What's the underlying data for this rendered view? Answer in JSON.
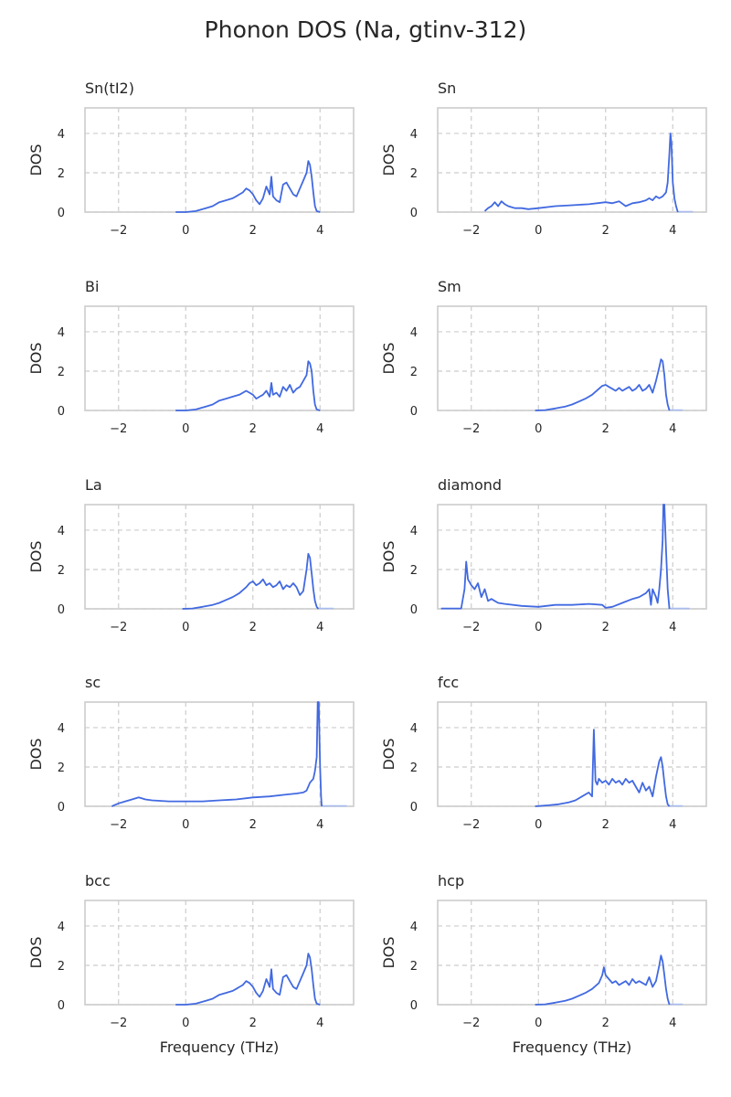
{
  "figure": {
    "title": "Phonon DOS (Na, gtinv-312)"
  },
  "style": {
    "line_color": "#4169e1",
    "tail_color": "#a9bcf0",
    "grid_color": "#cccccc",
    "spine_color": "#cccccc",
    "text_color": "#262626"
  },
  "chart_data": [
    {
      "type": "line",
      "title": "Sn(tI2)",
      "xlabel": "",
      "ylabel": "DOS",
      "xlim": [
        -3,
        5
      ],
      "ylim": [
        0,
        5.3
      ],
      "xticks": [
        "−2",
        "0",
        "2",
        "4"
      ],
      "xtick_values": [
        -2,
        0,
        2,
        4
      ],
      "yticks": [
        "0",
        "2",
        "4"
      ],
      "ytick_values": [
        0,
        2,
        4
      ],
      "grid": true,
      "series": [
        {
          "x": [
            -0.3,
            0,
            0.3,
            0.6,
            0.8,
            1.0,
            1.2,
            1.4,
            1.5,
            1.6,
            1.7,
            1.8,
            1.9,
            2.0,
            2.1,
            2.2,
            2.3,
            2.4,
            2.5,
            2.55,
            2.6,
            2.7,
            2.8,
            2.9,
            3.0,
            3.1,
            3.2,
            3.3,
            3.4,
            3.5,
            3.6,
            3.65,
            3.7,
            3.75,
            3.8,
            3.85,
            3.9,
            4.0
          ],
          "y": [
            0,
            0,
            0.05,
            0.2,
            0.3,
            0.5,
            0.6,
            0.7,
            0.8,
            0.9,
            1.0,
            1.2,
            1.1,
            0.9,
            0.6,
            0.4,
            0.7,
            1.3,
            0.9,
            1.8,
            0.8,
            0.6,
            0.5,
            1.4,
            1.5,
            1.2,
            0.9,
            0.8,
            1.2,
            1.6,
            2.0,
            2.6,
            2.4,
            1.8,
            1.0,
            0.3,
            0.05,
            0
          ]
        }
      ]
    },
    {
      "type": "line",
      "title": "Sn",
      "xlabel": "",
      "ylabel": "DOS",
      "xlim": [
        -3,
        5
      ],
      "ylim": [
        0,
        5.3
      ],
      "xticks": [
        "−2",
        "0",
        "2",
        "4"
      ],
      "xtick_values": [
        -2,
        0,
        2,
        4
      ],
      "yticks": [
        "0",
        "2",
        "4"
      ],
      "ytick_values": [
        0,
        2,
        4
      ],
      "grid": true,
      "tail": [
        [
          4.15,
          0.02
        ],
        [
          4.6,
          0.02
        ]
      ],
      "series": [
        {
          "x": [
            -1.6,
            -1.5,
            -1.4,
            -1.3,
            -1.2,
            -1.1,
            -1.0,
            -0.9,
            -0.8,
            -0.7,
            -0.6,
            -0.5,
            -0.3,
            0,
            0.5,
            1.0,
            1.5,
            2.0,
            2.2,
            2.4,
            2.6,
            2.8,
            3.0,
            3.2,
            3.3,
            3.4,
            3.5,
            3.6,
            3.7,
            3.8,
            3.85,
            3.9,
            3.93,
            3.96,
            4.0,
            4.05,
            4.1,
            4.15
          ],
          "y": [
            0.05,
            0.2,
            0.3,
            0.5,
            0.3,
            0.55,
            0.4,
            0.3,
            0.25,
            0.2,
            0.2,
            0.2,
            0.15,
            0.2,
            0.3,
            0.35,
            0.4,
            0.5,
            0.45,
            0.55,
            0.3,
            0.45,
            0.5,
            0.6,
            0.7,
            0.6,
            0.8,
            0.7,
            0.8,
            1.0,
            1.5,
            3.0,
            4.0,
            3.5,
            1.5,
            0.7,
            0.3,
            0
          ]
        }
      ]
    },
    {
      "type": "line",
      "title": "Bi",
      "xlabel": "",
      "ylabel": "DOS",
      "xlim": [
        -3,
        5
      ],
      "ylim": [
        0,
        5.3
      ],
      "xticks": [
        "−2",
        "0",
        "2",
        "4"
      ],
      "xtick_values": [
        -2,
        0,
        2,
        4
      ],
      "yticks": [
        "0",
        "2",
        "4"
      ],
      "ytick_values": [
        0,
        2,
        4
      ],
      "grid": true,
      "series": [
        {
          "x": [
            -0.3,
            0,
            0.3,
            0.6,
            0.8,
            1.0,
            1.2,
            1.4,
            1.6,
            1.8,
            1.9,
            2.0,
            2.1,
            2.2,
            2.3,
            2.4,
            2.5,
            2.55,
            2.6,
            2.7,
            2.8,
            2.9,
            3.0,
            3.1,
            3.2,
            3.3,
            3.4,
            3.5,
            3.6,
            3.65,
            3.7,
            3.75,
            3.8,
            3.85,
            3.9,
            4.0
          ],
          "y": [
            0,
            0,
            0.05,
            0.2,
            0.3,
            0.5,
            0.6,
            0.7,
            0.8,
            1.0,
            0.9,
            0.8,
            0.6,
            0.7,
            0.8,
            1.0,
            0.7,
            1.4,
            0.8,
            0.9,
            0.7,
            1.2,
            1.0,
            1.3,
            0.9,
            1.1,
            1.2,
            1.5,
            1.8,
            2.5,
            2.4,
            2.0,
            1.0,
            0.3,
            0.05,
            0
          ]
        }
      ]
    },
    {
      "type": "line",
      "title": "Sm",
      "xlabel": "",
      "ylabel": "DOS",
      "xlim": [
        -3,
        5
      ],
      "ylim": [
        0,
        5.3
      ],
      "xticks": [
        "−2",
        "0",
        "2",
        "4"
      ],
      "xtick_values": [
        -2,
        0,
        2,
        4
      ],
      "yticks": [
        "0",
        "2",
        "4"
      ],
      "ytick_values": [
        0,
        2,
        4
      ],
      "grid": true,
      "tail": [
        [
          3.9,
          0.02
        ],
        [
          4.3,
          0.02
        ]
      ],
      "series": [
        {
          "x": [
            -0.1,
            0.2,
            0.5,
            0.8,
            1.0,
            1.2,
            1.4,
            1.6,
            1.8,
            1.9,
            2.0,
            2.1,
            2.2,
            2.3,
            2.4,
            2.5,
            2.6,
            2.7,
            2.8,
            2.9,
            3.0,
            3.1,
            3.2,
            3.3,
            3.4,
            3.5,
            3.6,
            3.65,
            3.7,
            3.75,
            3.8,
            3.85,
            3.9
          ],
          "y": [
            0,
            0.02,
            0.1,
            0.2,
            0.3,
            0.45,
            0.6,
            0.8,
            1.1,
            1.25,
            1.3,
            1.2,
            1.1,
            1.0,
            1.15,
            1.0,
            1.1,
            1.2,
            1.0,
            1.1,
            1.3,
            1.0,
            1.1,
            1.3,
            0.9,
            1.5,
            2.2,
            2.6,
            2.5,
            1.8,
            0.8,
            0.3,
            0
          ]
        }
      ]
    },
    {
      "type": "line",
      "title": "La",
      "xlabel": "",
      "ylabel": "DOS",
      "xlim": [
        -3,
        5
      ],
      "ylim": [
        0,
        5.3
      ],
      "xticks": [
        "−2",
        "0",
        "2",
        "4"
      ],
      "xtick_values": [
        -2,
        0,
        2,
        4
      ],
      "yticks": [
        "0",
        "2",
        "4"
      ],
      "ytick_values": [
        0,
        2,
        4
      ],
      "grid": true,
      "tail": [
        [
          3.95,
          0.02
        ],
        [
          4.4,
          0.02
        ]
      ],
      "series": [
        {
          "x": [
            -0.1,
            0.2,
            0.5,
            0.8,
            1.0,
            1.2,
            1.4,
            1.6,
            1.8,
            1.9,
            2.0,
            2.1,
            2.2,
            2.3,
            2.4,
            2.5,
            2.6,
            2.7,
            2.8,
            2.9,
            3.0,
            3.1,
            3.2,
            3.3,
            3.4,
            3.5,
            3.6,
            3.65,
            3.7,
            3.75,
            3.8,
            3.85,
            3.9,
            3.95
          ],
          "y": [
            0,
            0.02,
            0.1,
            0.2,
            0.3,
            0.45,
            0.6,
            0.8,
            1.1,
            1.3,
            1.4,
            1.2,
            1.3,
            1.5,
            1.2,
            1.3,
            1.1,
            1.2,
            1.4,
            1.0,
            1.2,
            1.1,
            1.3,
            1.1,
            0.7,
            0.9,
            2.0,
            2.8,
            2.6,
            1.8,
            1.0,
            0.4,
            0.1,
            0
          ]
        }
      ]
    },
    {
      "type": "line",
      "title": "diamond",
      "xlabel": "",
      "ylabel": "DOS",
      "xlim": [
        -3,
        5
      ],
      "ylim": [
        0,
        5.3
      ],
      "xticks": [
        "−2",
        "0",
        "2",
        "4"
      ],
      "xtick_values": [
        -2,
        0,
        2,
        4
      ],
      "yticks": [
        "0",
        "2",
        "4"
      ],
      "ytick_values": [
        0,
        2,
        4
      ],
      "grid": true,
      "tail": [
        [
          3.9,
          0.02
        ],
        [
          4.5,
          0.02
        ]
      ],
      "series": [
        {
          "x": [
            -2.9,
            -2.3,
            -2.2,
            -2.15,
            -2.1,
            -2.0,
            -1.9,
            -1.8,
            -1.7,
            -1.6,
            -1.5,
            -1.4,
            -1.2,
            -1.0,
            -0.5,
            0,
            0.5,
            1.0,
            1.5,
            1.9,
            2.0,
            2.2,
            2.5,
            2.8,
            3.0,
            3.2,
            3.3,
            3.35,
            3.4,
            3.5,
            3.55,
            3.6,
            3.65,
            3.7,
            3.72,
            3.75,
            3.8,
            3.85,
            3.9
          ],
          "y": [
            0.02,
            0.02,
            1.0,
            2.4,
            1.5,
            1.2,
            1.0,
            1.3,
            0.6,
            1.0,
            0.4,
            0.5,
            0.3,
            0.25,
            0.15,
            0.1,
            0.2,
            0.2,
            0.25,
            0.2,
            0.05,
            0.1,
            0.3,
            0.5,
            0.6,
            0.8,
            1.0,
            0.2,
            1.0,
            0.6,
            0.3,
            1.0,
            2.0,
            3.5,
            5.3,
            5.3,
            3.0,
            1.0,
            0
          ]
        }
      ]
    },
    {
      "type": "line",
      "title": "sc",
      "xlabel": "",
      "ylabel": "DOS",
      "xlim": [
        -3,
        5
      ],
      "ylim": [
        0,
        5.3
      ],
      "xticks": [
        "−2",
        "0",
        "2",
        "4"
      ],
      "xtick_values": [
        -2,
        0,
        2,
        4
      ],
      "yticks": [
        "0",
        "2",
        "4"
      ],
      "ytick_values": [
        0,
        2,
        4
      ],
      "grid": true,
      "tail": [
        [
          4.05,
          0.02
        ],
        [
          4.8,
          0.02
        ]
      ],
      "series": [
        {
          "x": [
            -2.2,
            -2.0,
            -1.8,
            -1.6,
            -1.4,
            -1.2,
            -1.0,
            -0.5,
            0,
            0.5,
            1.0,
            1.5,
            2.0,
            2.5,
            3.0,
            3.3,
            3.5,
            3.6,
            3.7,
            3.8,
            3.85,
            3.9,
            3.93,
            3.96,
            4.0,
            4.03,
            4.05
          ],
          "y": [
            0,
            0.15,
            0.25,
            0.35,
            0.45,
            0.35,
            0.3,
            0.25,
            0.25,
            0.25,
            0.3,
            0.35,
            0.45,
            0.5,
            0.6,
            0.65,
            0.7,
            0.8,
            1.2,
            1.4,
            1.8,
            2.5,
            5.3,
            5.3,
            2.0,
            0.5,
            0
          ]
        }
      ]
    },
    {
      "type": "line",
      "title": "fcc",
      "xlabel": "",
      "ylabel": "DOS",
      "xlim": [
        -3,
        5
      ],
      "ylim": [
        0,
        5.3
      ],
      "xticks": [
        "−2",
        "0",
        "2",
        "4"
      ],
      "xtick_values": [
        -2,
        0,
        2,
        4
      ],
      "yticks": [
        "0",
        "2",
        "4"
      ],
      "ytick_values": [
        0,
        2,
        4
      ],
      "grid": true,
      "tail": [
        [
          3.9,
          0.02
        ],
        [
          4.3,
          0.02
        ]
      ],
      "series": [
        {
          "x": [
            -0.1,
            0.3,
            0.6,
            0.9,
            1.1,
            1.3,
            1.5,
            1.6,
            1.65,
            1.7,
            1.72,
            1.75,
            1.8,
            1.9,
            2.0,
            2.1,
            2.2,
            2.3,
            2.4,
            2.5,
            2.6,
            2.7,
            2.8,
            2.9,
            3.0,
            3.1,
            3.2,
            3.3,
            3.4,
            3.5,
            3.6,
            3.65,
            3.7,
            3.75,
            3.8,
            3.85,
            3.9
          ],
          "y": [
            0,
            0.05,
            0.1,
            0.2,
            0.3,
            0.5,
            0.7,
            0.5,
            3.9,
            1.3,
            1.2,
            1.1,
            1.4,
            1.2,
            1.3,
            1.1,
            1.4,
            1.2,
            1.3,
            1.1,
            1.4,
            1.2,
            1.3,
            1.0,
            0.7,
            1.2,
            0.8,
            1.0,
            0.5,
            1.5,
            2.3,
            2.5,
            2.0,
            1.2,
            0.5,
            0.1,
            0
          ]
        }
      ]
    },
    {
      "type": "line",
      "title": "bcc",
      "xlabel": "Frequency (THz)",
      "ylabel": "DOS",
      "xlim": [
        -3,
        5
      ],
      "ylim": [
        0,
        5.3
      ],
      "xticks": [
        "−2",
        "0",
        "2",
        "4"
      ],
      "xtick_values": [
        -2,
        0,
        2,
        4
      ],
      "yticks": [
        "0",
        "2",
        "4"
      ],
      "ytick_values": [
        0,
        2,
        4
      ],
      "grid": true,
      "series": [
        {
          "x": [
            -0.3,
            0,
            0.3,
            0.6,
            0.8,
            1.0,
            1.2,
            1.4,
            1.5,
            1.6,
            1.7,
            1.8,
            1.9,
            2.0,
            2.1,
            2.2,
            2.3,
            2.4,
            2.5,
            2.55,
            2.6,
            2.7,
            2.8,
            2.9,
            3.0,
            3.1,
            3.2,
            3.3,
            3.4,
            3.5,
            3.6,
            3.65,
            3.7,
            3.75,
            3.8,
            3.85,
            3.9,
            4.0
          ],
          "y": [
            0,
            0,
            0.05,
            0.2,
            0.3,
            0.5,
            0.6,
            0.7,
            0.8,
            0.9,
            1.0,
            1.2,
            1.1,
            0.9,
            0.6,
            0.4,
            0.7,
            1.3,
            0.9,
            1.8,
            0.8,
            0.6,
            0.5,
            1.4,
            1.5,
            1.2,
            0.9,
            0.8,
            1.2,
            1.6,
            2.0,
            2.6,
            2.4,
            1.8,
            1.0,
            0.3,
            0.05,
            0
          ]
        }
      ]
    },
    {
      "type": "line",
      "title": "hcp",
      "xlabel": "Frequency (THz)",
      "ylabel": "DOS",
      "xlim": [
        -3,
        5
      ],
      "ylim": [
        0,
        5.3
      ],
      "xticks": [
        "−2",
        "0",
        "2",
        "4"
      ],
      "xtick_values": [
        -2,
        0,
        2,
        4
      ],
      "yticks": [
        "0",
        "2",
        "4"
      ],
      "ytick_values": [
        0,
        2,
        4
      ],
      "grid": true,
      "tail": [
        [
          3.9,
          0.02
        ],
        [
          4.3,
          0.02
        ]
      ],
      "series": [
        {
          "x": [
            -0.1,
            0.2,
            0.5,
            0.8,
            1.0,
            1.2,
            1.4,
            1.6,
            1.8,
            1.9,
            1.95,
            2.0,
            2.1,
            2.2,
            2.3,
            2.4,
            2.5,
            2.6,
            2.7,
            2.8,
            2.9,
            3.0,
            3.1,
            3.2,
            3.3,
            3.4,
            3.5,
            3.6,
            3.65,
            3.7,
            3.75,
            3.8,
            3.85,
            3.9
          ],
          "y": [
            0,
            0.02,
            0.1,
            0.2,
            0.3,
            0.45,
            0.6,
            0.8,
            1.1,
            1.5,
            1.9,
            1.5,
            1.3,
            1.1,
            1.2,
            1.0,
            1.1,
            1.2,
            1.0,
            1.3,
            1.1,
            1.2,
            1.1,
            1.0,
            1.4,
            0.9,
            1.2,
            2.0,
            2.5,
            2.2,
            1.5,
            0.8,
            0.3,
            0
          ]
        }
      ]
    }
  ]
}
